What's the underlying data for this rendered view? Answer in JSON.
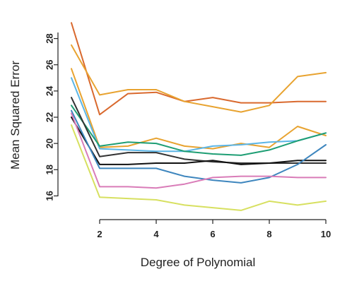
{
  "chart_data": {
    "type": "line",
    "xlabel": "Degree of Polynomial",
    "ylabel": "Mean Squared Error",
    "xlim": [
      1,
      10
    ],
    "ylim": [
      15,
      29
    ],
    "x_ticks": [
      2,
      4,
      6,
      8,
      10
    ],
    "y_ticks": [
      16,
      18,
      20,
      22,
      24,
      26,
      28
    ],
    "grid": false,
    "x": [
      1,
      2,
      3,
      4,
      5,
      6,
      7,
      8,
      9,
      10
    ],
    "series": [
      {
        "color": "#D9692E",
        "values": [
          29.2,
          22.2,
          23.8,
          23.9,
          23.2,
          23.5,
          23.1,
          23.1,
          23.2,
          23.2
        ]
      },
      {
        "color": "#E8A330",
        "values": [
          27.5,
          23.7,
          24.1,
          24.1,
          23.2,
          22.8,
          22.4,
          22.9,
          25.1,
          25.4
        ]
      },
      {
        "color": "#E8A330",
        "values": [
          25.7,
          19.7,
          19.8,
          20.4,
          19.8,
          19.6,
          20.0,
          19.7,
          21.3,
          20.6
        ]
      },
      {
        "color": "#5BB5E6",
        "values": [
          25.0,
          19.6,
          19.5,
          19.4,
          19.4,
          19.8,
          19.9,
          20.1,
          20.2,
          20.8
        ]
      },
      {
        "color": "#1E9E74",
        "values": [
          22.9,
          19.8,
          20.1,
          20.0,
          19.4,
          19.2,
          19.1,
          19.5,
          20.2,
          20.8
        ]
      },
      {
        "color": "#333333",
        "values": [
          23.5,
          19.0,
          19.3,
          19.3,
          18.8,
          18.6,
          18.5,
          18.5,
          18.5,
          18.5
        ]
      },
      {
        "color": "#111111",
        "values": [
          22.0,
          18.4,
          18.4,
          18.5,
          18.5,
          18.7,
          18.4,
          18.5,
          18.7,
          18.7
        ]
      },
      {
        "color": "#3E86BE",
        "values": [
          22.5,
          18.1,
          18.1,
          18.1,
          17.5,
          17.2,
          17.0,
          17.4,
          18.4,
          19.9
        ]
      },
      {
        "color": "#D97CB8",
        "values": [
          22.3,
          16.7,
          16.7,
          16.6,
          16.9,
          17.4,
          17.5,
          17.5,
          17.4,
          17.4
        ]
      },
      {
        "color": "#D7E060",
        "values": [
          21.4,
          15.9,
          15.8,
          15.7,
          15.3,
          15.1,
          14.9,
          15.6,
          15.3,
          15.6
        ]
      }
    ]
  }
}
